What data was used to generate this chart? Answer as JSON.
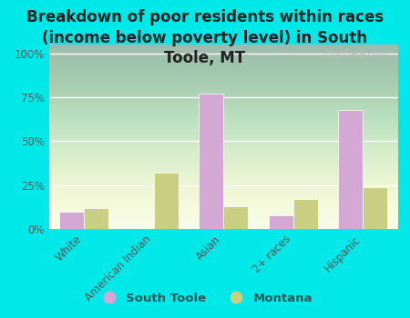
{
  "title": "Breakdown of poor residents within races\n(income below poverty level) in South\nToole, MT",
  "categories": [
    "White",
    "American Indian",
    "Asian",
    "2+ races",
    "Hispanic"
  ],
  "south_toole": [
    10,
    0,
    77,
    8,
    68
  ],
  "montana": [
    12,
    32,
    13,
    17,
    24
  ],
  "color_south_toole": "#d4a8d4",
  "color_montana": "#c8cf82",
  "background_color": "#00e8e8",
  "watermark": "City-Data.com",
  "yticks": [
    0,
    25,
    50,
    75,
    100
  ],
  "ylim": [
    0,
    105
  ],
  "bar_width": 0.35,
  "title_fontsize": 12,
  "legend_south_toole": "South Toole",
  "legend_montana": "Montana"
}
